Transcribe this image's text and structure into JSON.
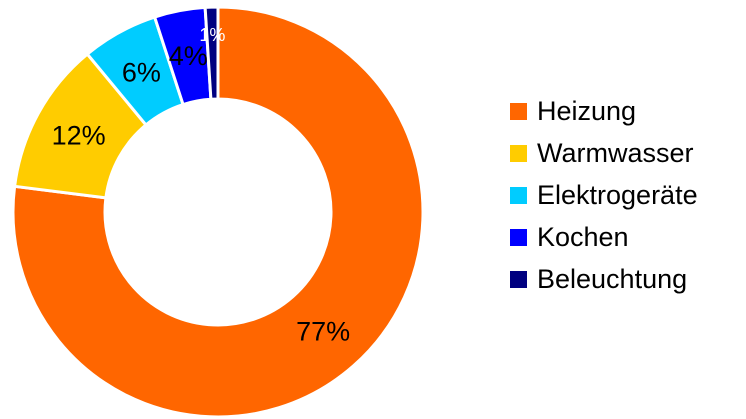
{
  "chart_data": {
    "type": "pie",
    "variant": "donut",
    "categories": [
      "Heizung",
      "Warmwasser",
      "Elektrogeräte",
      "Kochen",
      "Beleuchtung"
    ],
    "values": [
      77,
      12,
      6,
      4,
      1
    ],
    "data_labels": [
      "77%",
      "12%",
      "6%",
      "4%",
      "1%"
    ],
    "colors": [
      "#ff6600",
      "#ffcc00",
      "#00ccff",
      "#0000ff",
      "#000080"
    ],
    "label_colors": [
      "#000000",
      "#000000",
      "#000000",
      "#000000",
      "#ffffff"
    ],
    "legend_position": "right",
    "title": ""
  }
}
